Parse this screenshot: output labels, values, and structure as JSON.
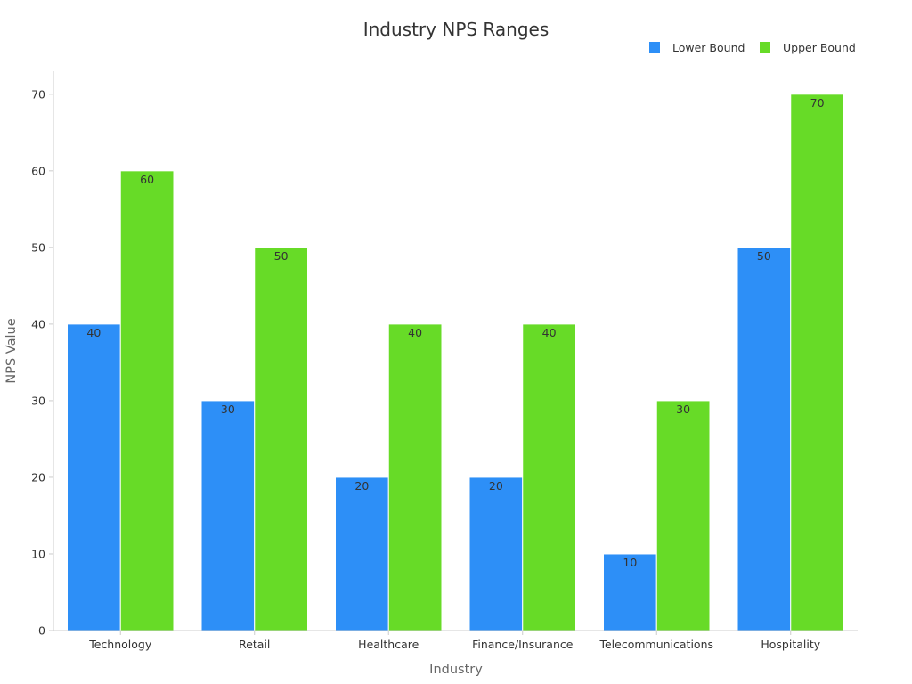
{
  "chart_data": {
    "type": "bar",
    "title": "Industry NPS Ranges",
    "xlabel": "Industry",
    "ylabel": "NPS Value",
    "categories": [
      "Technology",
      "Retail",
      "Healthcare",
      "Finance/Insurance",
      "Telecommunications",
      "Hospitality"
    ],
    "series": [
      {
        "name": "Lower Bound",
        "color": "#2d8ff7",
        "values": [
          40,
          30,
          20,
          20,
          10,
          50
        ]
      },
      {
        "name": "Upper Bound",
        "color": "#67db27",
        "values": [
          60,
          50,
          40,
          40,
          30,
          70
        ]
      }
    ],
    "ylim": [
      0,
      73
    ],
    "yticks": [
      0,
      10,
      20,
      30,
      40,
      50,
      60,
      70
    ],
    "legend_position": "top-right",
    "grid": false,
    "data_labels": true
  }
}
